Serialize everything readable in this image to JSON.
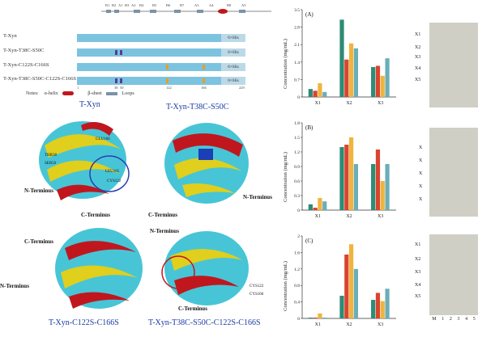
{
  "schematic": {
    "element_labels": [
      "B1",
      "B2",
      "A1",
      "B3",
      "A2",
      "B4",
      "B5",
      "B6",
      "B7",
      "A3",
      "A4",
      "B8",
      "A5"
    ],
    "rows": [
      {
        "label": "T-Xyn",
        "tag": "6×His"
      },
      {
        "label": "T-Xyn-T38C-S50C",
        "tag": "6×His"
      },
      {
        "label": "T-Xyn-C122S-C166S",
        "tag": "6×His"
      },
      {
        "label": "T-Xyn-T38C-S50C-C122S-C166S",
        "tag": "6×His"
      }
    ],
    "positions": [
      "1",
      "38",
      "50",
      "122",
      "166",
      "229"
    ],
    "legend": {
      "notes": "Notes:",
      "helix": "α-helix",
      "sheet": "β-sheet",
      "loops": "Loops"
    }
  },
  "structures": {
    "captions": [
      "T-Xyn",
      "T-Xyn-T38C-S50C",
      "T-Xyn-C122S-C166S",
      "T-Xyn-T38C-S50C-C122S-C166S"
    ],
    "n_terminus": "N-Terminus",
    "c_terminus": "C-Terminus",
    "residues": [
      "THR38",
      "SER50",
      "GLU166",
      "LEU165",
      "CYS122",
      "CYS166"
    ]
  },
  "chart_data": [
    {
      "type": "bar",
      "panel": "(A)",
      "ylabel": "Concentration (mg/mL)",
      "categories": [
        "X1",
        "X2",
        "X3"
      ],
      "ylim": [
        0,
        3.5
      ],
      "yticks": [
        "0",
        "0.7",
        "1.4",
        "2.1",
        "2.8",
        "3.5"
      ],
      "series": [
        {
          "values": [
            0.32,
            3.1,
            1.2
          ]
        },
        {
          "values": [
            0.25,
            1.5,
            1.25
          ]
        },
        {
          "values": [
            0.55,
            2.15,
            0.85
          ]
        },
        {
          "values": [
            0.2,
            1.95,
            1.55
          ]
        }
      ]
    },
    {
      "type": "bar",
      "panel": "(B)",
      "ylabel": "Concentration (mg/mL)",
      "categories": [
        "X1",
        "X2",
        "X3"
      ],
      "ylim": [
        0,
        1.8
      ],
      "yticks": [
        "0",
        "0.3",
        "0.6",
        "0.9",
        "1.2",
        "1.5",
        "1.8"
      ],
      "series": [
        {
          "values": [
            0.12,
            1.3,
            0.95
          ]
        },
        {
          "values": [
            0.05,
            1.35,
            1.25
          ]
        },
        {
          "values": [
            0.25,
            1.5,
            0.6
          ]
        },
        {
          "values": [
            0.18,
            0.95,
            0.95
          ]
        }
      ]
    },
    {
      "type": "bar",
      "panel": "(C)",
      "ylabel": "Concentration (mg/mL)",
      "categories": [
        "X1",
        "X2",
        "X3"
      ],
      "ylim": [
        0,
        2
      ],
      "yticks": [
        "0",
        "0.4",
        "0.8",
        "1.2",
        "1.6",
        "2"
      ],
      "series": [
        {
          "values": [
            0.02,
            0.55,
            0.45
          ]
        },
        {
          "values": [
            0.02,
            1.55,
            0.62
          ]
        },
        {
          "values": [
            0.12,
            1.8,
            0.42
          ]
        },
        {
          "values": [
            0.02,
            1.2,
            0.72
          ]
        }
      ]
    }
  ],
  "tlc": {
    "plates": [
      {
        "labels": [
          "X1",
          "X2",
          "X3",
          "X4",
          "X5"
        ]
      },
      {
        "labels": [
          "X",
          "X",
          "X",
          "X",
          "X"
        ]
      },
      {
        "labels": [
          "X1",
          "X2",
          "X3",
          "X4",
          "X5"
        ],
        "lanes": [
          "M",
          "1",
          "2",
          "3",
          "4",
          "5"
        ]
      }
    ]
  },
  "colors": {
    "s1": "#2e8b74",
    "s2": "#d9442f",
    "s3": "#f0b43c",
    "s4": "#6aaeb8",
    "helix": "#c0171e",
    "sheet": "#e2d21c",
    "loop": "#32c1d6"
  }
}
